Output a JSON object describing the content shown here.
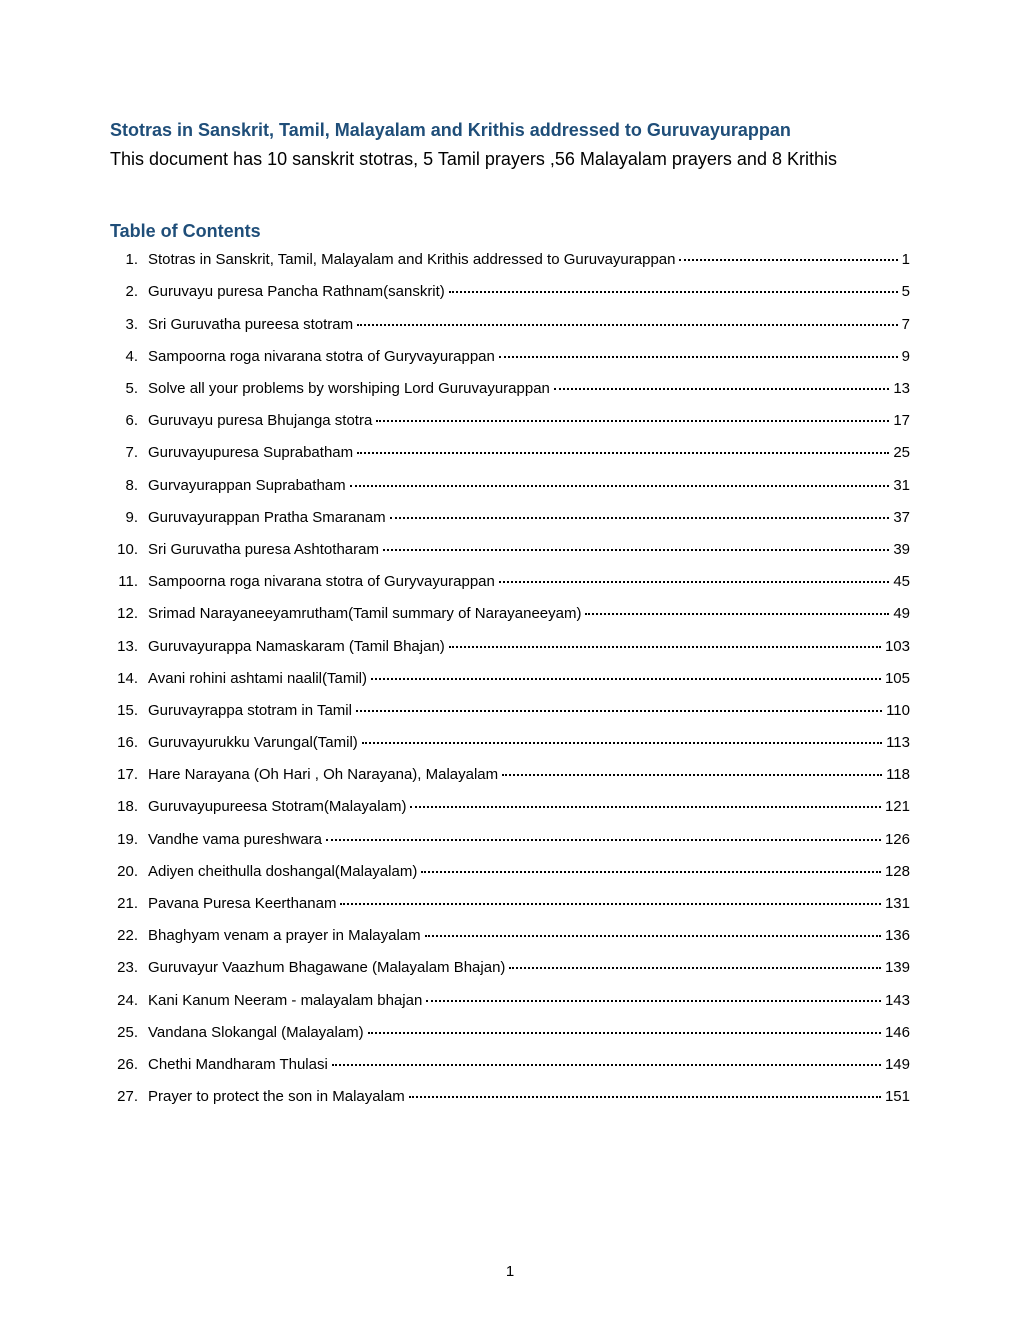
{
  "title": "Stotras  in Sanskrit, Tamil, Malayalam  and Krithis addressed to Guruvayurappan",
  "intro": "  This document has  10  sanskrit stotras, 5 Tamil  prayers ,56 Malayalam prayers   and 8 Krithis",
  "toc_heading": "Table of Contents",
  "toc": [
    {
      "num": "1.",
      "text": "Stotras  in Sanskrit, Tamil, Malayalam  and Krithis addressed to Guruvayurappan",
      "page": "1"
    },
    {
      "num": "2.",
      "text": "Guruvayu puresa Pancha Rathnam(sanskrit)",
      "page": "5"
    },
    {
      "num": "3.",
      "text": "Sri Guruvatha pureesa  stotram",
      "page": "7"
    },
    {
      "num": "4.",
      "text": "Sampoorna  roga  nivarana  stotra  of Guryvayurappan",
      "page": "9"
    },
    {
      "num": "5.",
      "text": "Solve all   your problems  by worshiping  Lord Guruvayurappan",
      "page": "13"
    },
    {
      "num": "6.",
      "text": "Guruvayu puresa Bhujanga stotra",
      "page": "17"
    },
    {
      "num": "7.",
      "text": "Guruvayupuresa Suprabatham",
      "page": "25"
    },
    {
      "num": "8.",
      "text": "Gurvayurappan  Suprabatham",
      "page": "31"
    },
    {
      "num": "9.",
      "text": "Guruvayurappan  Pratha  Smaranam",
      "page": "37"
    },
    {
      "num": "10.",
      "text": "Sri  Guruvatha puresa  Ashtotharam",
      "page": "39"
    },
    {
      "num": "11.",
      "text": "Sampoorna  roga  nivarana  stotra  of Guryvayurappan",
      "page": "45"
    },
    {
      "num": "12.",
      "text": "Srimad Narayaneeyamrutham(Tamil  summary of Narayaneeyam)",
      "page": "49"
    },
    {
      "num": "13.",
      "text": "Guruvayurappa  Namaskaram  (Tamil Bhajan)",
      "page": "103"
    },
    {
      "num": "14.",
      "text": "Avani rohini ashtami naalil(Tamil)",
      "page": "105"
    },
    {
      "num": "15.",
      "text": "Guruvayrappa stotram in Tamil",
      "page": "110"
    },
    {
      "num": "16.",
      "text": "Guruvayurukku  Varungal(Tamil)",
      "page": "113"
    },
    {
      "num": "17.",
      "text": "Hare Narayana (Oh Hari , Oh Narayana), Malayalam",
      "page": "118"
    },
    {
      "num": "18.",
      "text": "Guruvayupureesa  Stotram(Malayalam)",
      "page": "121"
    },
    {
      "num": "19.",
      "text": "Vandhe  vama pureshwara",
      "page": "126"
    },
    {
      "num": "20.",
      "text": "Adiyen cheithulla  doshangal(Malayalam)",
      "page": "128"
    },
    {
      "num": "21.",
      "text": "Pavana Puresa  Keerthanam",
      "page": "131"
    },
    {
      "num": "22.",
      "text": "Bhaghyam venam a prayer in Malayalam",
      "page": "136"
    },
    {
      "num": "23.",
      "text": "Guruvayur  Vaazhum Bhagawane (Malayalam Bhajan)",
      "page": "139"
    },
    {
      "num": "24.",
      "text": "Kani Kanum Neeram - malayalam bhajan",
      "page": "143"
    },
    {
      "num": "25.",
      "text": "Vandana  Slokangal (Malayalam)",
      "page": "146"
    },
    {
      "num": "26.",
      "text": "Chethi Mandharam  Thulasi",
      "page": "149"
    },
    {
      "num": "27.",
      "text": "Prayer to protect the son in Malayalam",
      "page": "151"
    }
  ],
  "page_number": "1",
  "colors": {
    "heading": "#1f4e79",
    "text": "#000000",
    "background": "#ffffff"
  },
  "typography": {
    "title_fontsize": 18,
    "body_fontsize": 18,
    "toc_fontsize": 15,
    "font_family": "Arial"
  }
}
